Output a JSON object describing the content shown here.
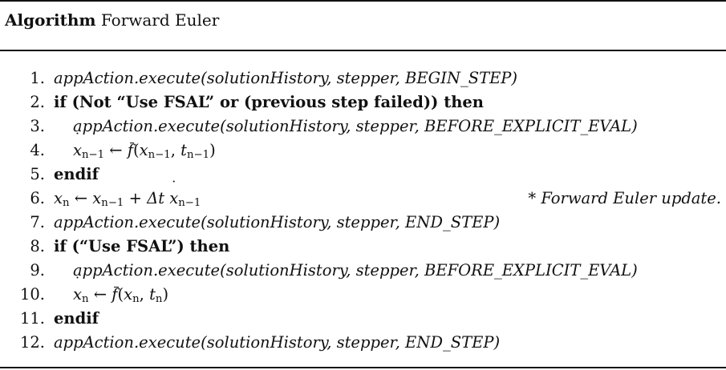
{
  "header": {
    "label": "Algorithm",
    "name": "Forward Euler"
  },
  "steps": [
    {
      "num": "1.",
      "text": "appAction.execute(solutionHistory, stepper, BEGIN_STEP)"
    },
    {
      "num": "2.",
      "if_kw": "if",
      "cond": "(Not “Use FSAL” or (previous step failed))",
      "then_kw": "then"
    },
    {
      "num": "3.",
      "text": "appAction.execute(solutionHistory, stepper, BEFORE_EXPLICIT_EVAL)"
    },
    {
      "num": "4.",
      "lhs": "x",
      "lhs_sub": "n−1",
      "arrow": "←",
      "fn": "f",
      "args_open": "(",
      "arg1": "x",
      "arg1_sub": "n−1",
      "sep": ", ",
      "arg2": "t",
      "arg2_sub": "n−1",
      "args_close": ")"
    },
    {
      "num": "5.",
      "kw": "endif"
    },
    {
      "num": "6.",
      "lhs": "x",
      "lhs_sub": "n",
      "arrow": "←",
      "t1": "x",
      "t1_sub": "n−1",
      "plus": "+",
      "delta": "Δt",
      "t2": "x",
      "t2_sub": "n−1",
      "comment": "* Forward Euler update."
    },
    {
      "num": "7.",
      "text": "appAction.execute(solutionHistory, stepper, END_STEP)"
    },
    {
      "num": "8.",
      "if_kw": "if",
      "cond": "(“Use FSAL”)",
      "then_kw": "then"
    },
    {
      "num": "9.",
      "text": "appAction.execute(solutionHistory, stepper, BEFORE_EXPLICIT_EVAL)"
    },
    {
      "num": "10.",
      "lhs": "x",
      "lhs_sub": "n",
      "arrow": "←",
      "fn": "f",
      "args_open": "(",
      "arg1": "x",
      "arg1_sub": "n",
      "sep": ", ",
      "arg2": "t",
      "arg2_sub": "n",
      "args_close": ")"
    },
    {
      "num": "11.",
      "kw": "endif"
    },
    {
      "num": "12.",
      "text": "appAction.execute(solutionHistory, stepper, END_STEP)"
    }
  ]
}
